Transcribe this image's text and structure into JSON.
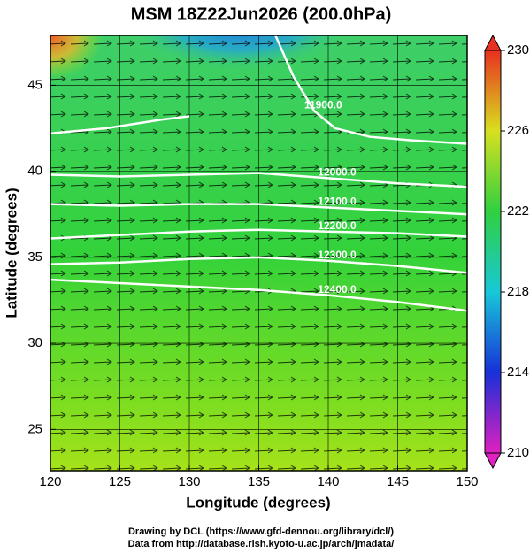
{
  "chart_data": {
    "type": "contour-map",
    "title": "MSM 18Z22Jun2026 (200.0hPa)",
    "x_label": "Longitude (degrees)",
    "y_label": "Latitude (degrees)",
    "xlim": [
      120,
      150
    ],
    "ylim": [
      22.6,
      47.9
    ],
    "xticks": [
      120,
      125,
      130,
      135,
      140,
      145,
      150
    ],
    "yticks": [
      25,
      30,
      35,
      40,
      45
    ],
    "grid": true,
    "contour_color": "#ffffff",
    "contours": [
      {
        "level": 11900,
        "label": "11900.0",
        "x": [
          120,
          124,
          128,
          130,
          null,
          136.2,
          137.5,
          139,
          140.5,
          143,
          146,
          150
        ],
        "y": [
          42.2,
          42.5,
          43,
          43.2,
          null,
          47.9,
          45.5,
          43.5,
          42.5,
          42.0,
          41.8,
          41.6
        ]
      },
      {
        "level": 12000,
        "label": "12000.0",
        "x": [
          120,
          125,
          130,
          135,
          140,
          145,
          150
        ],
        "y": [
          39.8,
          39.7,
          39.8,
          39.9,
          39.6,
          39.3,
          39.1
        ]
      },
      {
        "level": 12100,
        "label": "12100.0",
        "x": [
          120,
          125,
          130,
          135,
          140,
          145,
          150
        ],
        "y": [
          38.1,
          38.0,
          38.1,
          38.1,
          37.9,
          37.7,
          37.5
        ]
      },
      {
        "level": 12200,
        "label": "12200.0",
        "x": [
          120,
          125,
          130,
          135,
          140,
          145,
          150
        ],
        "y": [
          36.1,
          36.3,
          36.5,
          36.6,
          36.5,
          36.4,
          36.2
        ]
      },
      {
        "level": 12300,
        "label": "12300.0",
        "x": [
          120,
          125,
          130,
          135,
          140,
          145,
          150
        ],
        "y": [
          34.6,
          34.7,
          34.9,
          35.0,
          34.8,
          34.5,
          34.1
        ]
      },
      {
        "level": 12400,
        "label": "12400.0",
        "x": [
          120,
          125,
          130,
          135,
          140,
          145,
          150
        ],
        "y": [
          33.7,
          33.5,
          33.3,
          33.1,
          32.8,
          32.4,
          31.9
        ]
      }
    ],
    "colorbar": {
      "lim": [
        210,
        230
      ],
      "ticks": [
        210,
        214,
        218,
        222,
        226,
        230
      ]
    },
    "credits": [
      "Drawing by DCL (https://www.gfd-dennou.org/library/dcl/)",
      "Data from http://database.rish.kyoto-u.ac.jp/arch/jmadata/"
    ]
  }
}
